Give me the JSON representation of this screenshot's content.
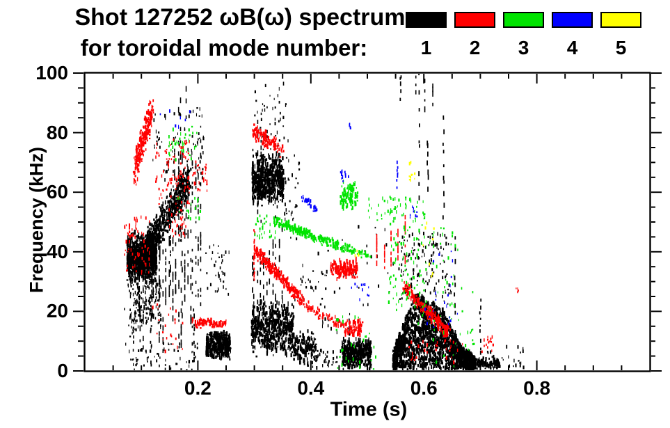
{
  "header": {
    "title_line1": "Shot 127252 ωB(ω) spectrum",
    "title_line2": "for toroidal mode number:"
  },
  "chart_data": {
    "type": "scatter",
    "title": "Shot 127252 ωB(ω) spectrum for toroidal mode number: 1 2 3 4 5",
    "xlabel": "Time (s)",
    "ylabel": "Frequency (kHz)",
    "xlim": [
      0.0,
      1.0
    ],
    "ylim": [
      0,
      100
    ],
    "x_major_ticks": [
      0.2,
      0.4,
      0.6,
      0.8
    ],
    "x_major_tick_labels": [
      "0.2",
      "0.4",
      "0.6",
      "0.8"
    ],
    "x_minor_tick_step": 0.05,
    "y_major_ticks": [
      0,
      20,
      40,
      60,
      80,
      100
    ],
    "y_major_tick_labels": [
      "0",
      "20",
      "40",
      "60",
      "80",
      "100"
    ],
    "y_minor_tick_step": 5,
    "grid": false,
    "legend": {
      "position": "top-right",
      "entries": [
        {
          "mode": 1,
          "label": "1",
          "color": "#000000"
        },
        {
          "mode": 2,
          "label": "2",
          "color": "#ff0000"
        },
        {
          "mode": 3,
          "label": "3",
          "color": "#00e400"
        },
        {
          "mode": 4,
          "label": "4",
          "color": "#0000ff"
        },
        {
          "mode": 5,
          "label": "5",
          "color": "#ffff00"
        }
      ]
    },
    "clusters_schema": "mode=toroidal mode number (color per legend); t=time range in s; f=frequency range in kHz; kinds: blob=dense patch, hump=dense mass under envelope env=[[t,fmax]...], trace=chirp from p1=[t,f] to p2=[t,f] with half-thickness w kHz, vlines=k dashed vertical striations with bottoms fb and tops ft, vline=single dashed vertical, speckle=sparse points",
    "clusters": [
      {
        "mode": 1,
        "kind": "blob",
        "t": [
          0.075,
          0.127
        ],
        "f": [
          29,
          46
        ],
        "n": 900
      },
      {
        "mode": 1,
        "kind": "speckle",
        "t": [
          0.08,
          0.135
        ],
        "f": [
          14,
          30
        ],
        "n": 140
      },
      {
        "mode": 1,
        "kind": "trace",
        "p1": [
          0.1,
          38
        ],
        "p2": [
          0.185,
          64
        ],
        "w": 7,
        "n": 650
      },
      {
        "mode": 1,
        "kind": "vlines",
        "t": [
          0.095,
          0.205
        ],
        "k": 26,
        "fb": [
          4,
          26
        ],
        "ft": [
          40,
          74
        ],
        "seg": 14
      },
      {
        "mode": 1,
        "kind": "vlines",
        "t": [
          0.157,
          0.178
        ],
        "k": 4,
        "fb": [
          38,
          48
        ],
        "ft": [
          88,
          100
        ],
        "seg": 10
      },
      {
        "mode": 1,
        "kind": "speckle",
        "t": [
          0.12,
          0.21
        ],
        "f": [
          62,
          88
        ],
        "n": 85
      },
      {
        "mode": 1,
        "kind": "speckle",
        "t": [
          0.085,
          0.2
        ],
        "f": [
          0,
          9
        ],
        "n": 55
      },
      {
        "mode": 1,
        "kind": "vline",
        "t": 0.117,
        "f": [
          0,
          22
        ],
        "n": 10
      },
      {
        "mode": 1,
        "kind": "vline",
        "t": 0.193,
        "f": [
          2,
          22
        ],
        "n": 8
      },
      {
        "mode": 1,
        "kind": "blob",
        "t": [
          0.215,
          0.258
        ],
        "f": [
          3,
          13
        ],
        "n": 380
      },
      {
        "mode": 1,
        "kind": "speckle",
        "t": [
          0.213,
          0.258
        ],
        "f": [
          24,
          42
        ],
        "n": 38
      },
      {
        "mode": 1,
        "kind": "blob",
        "t": [
          0.296,
          0.352
        ],
        "f": [
          54,
          73
        ],
        "n": 620
      },
      {
        "mode": 1,
        "kind": "vlines",
        "t": [
          0.296,
          0.312
        ],
        "k": 3,
        "fb": [
          46,
          52
        ],
        "ft": [
          76,
          82
        ],
        "seg": 8
      },
      {
        "mode": 1,
        "kind": "vlines",
        "t": [
          0.295,
          0.35
        ],
        "k": 11,
        "fb": [
          4,
          18
        ],
        "ft": [
          38,
          52
        ],
        "seg": 10
      },
      {
        "mode": 1,
        "kind": "blob",
        "t": [
          0.295,
          0.37
        ],
        "f": [
          4,
          23
        ],
        "n": 520
      },
      {
        "mode": 1,
        "kind": "blob",
        "t": [
          0.37,
          0.41
        ],
        "f": [
          1,
          13
        ],
        "n": 140
      },
      {
        "mode": 1,
        "kind": "speckle",
        "t": [
          0.3,
          0.36
        ],
        "f": [
          74,
          96
        ],
        "n": 45
      },
      {
        "mode": 1,
        "kind": "speckle",
        "t": [
          0.35,
          0.38
        ],
        "f": [
          50,
          72
        ],
        "n": 28
      },
      {
        "mode": 1,
        "kind": "speckle",
        "t": [
          0.38,
          0.43
        ],
        "f": [
          26,
          33
        ],
        "n": 18
      },
      {
        "mode": 1,
        "kind": "speckle",
        "t": [
          0.4,
          0.455
        ],
        "f": [
          0,
          7
        ],
        "n": 40
      },
      {
        "mode": 1,
        "kind": "speckle",
        "t": [
          0.42,
          0.455
        ],
        "f": [
          12,
          18
        ],
        "n": 12
      },
      {
        "mode": 1,
        "kind": "blob",
        "t": [
          0.455,
          0.507
        ],
        "f": [
          0,
          11
        ],
        "n": 380
      },
      {
        "mode": 1,
        "kind": "vline",
        "t": 0.468,
        "f": [
          9,
          16
        ],
        "n": 5
      },
      {
        "mode": 1,
        "kind": "hump",
        "env": [
          [
            0.545,
            6
          ],
          [
            0.565,
            16
          ],
          [
            0.585,
            25
          ],
          [
            0.63,
            21
          ],
          [
            0.665,
            8
          ],
          [
            0.69,
            4
          ]
        ],
        "n": 1700
      },
      {
        "mode": 1,
        "kind": "blob",
        "t": [
          0.69,
          0.735
        ],
        "f": [
          0,
          4
        ],
        "n": 110
      },
      {
        "mode": 1,
        "kind": "speckle",
        "t": [
          0.555,
          0.65
        ],
        "f": [
          22,
          46
        ],
        "n": 130
      },
      {
        "mode": 1,
        "kind": "vlines",
        "t": [
          0.585,
          0.615
        ],
        "k": 3,
        "fb": [
          84,
          88
        ],
        "ft": [
          96,
          99
        ],
        "seg": 5
      },
      {
        "mode": 1,
        "kind": "vline",
        "t": 0.559,
        "f": [
          90,
          100
        ],
        "n": 5
      },
      {
        "mode": 1,
        "kind": "vline",
        "t": 0.592,
        "f": [
          55,
          100
        ],
        "n": 9
      },
      {
        "mode": 1,
        "kind": "vline",
        "t": 0.607,
        "f": [
          60,
          78
        ],
        "n": 7
      },
      {
        "mode": 1,
        "kind": "vline",
        "t": 0.635,
        "f": [
          50,
          88
        ],
        "n": 11
      },
      {
        "mode": 1,
        "kind": "vline",
        "t": 0.655,
        "f": [
          12,
          45
        ],
        "n": 9
      },
      {
        "mode": 1,
        "kind": "vline",
        "t": 0.7,
        "f": [
          4,
          24
        ],
        "n": 9
      },
      {
        "mode": 1,
        "kind": "speckle",
        "t": [
          0.71,
          0.78
        ],
        "f": [
          0,
          8
        ],
        "n": 22
      },
      {
        "mode": 1,
        "kind": "speckle",
        "t": [
          0.07,
          0.095
        ],
        "f": [
          0,
          30
        ],
        "n": 35
      },
      {
        "mode": 1,
        "kind": "speckle",
        "t": [
          0.36,
          0.55
        ],
        "f": [
          15,
          48
        ],
        "n": 45
      },
      {
        "mode": 2,
        "kind": "trace",
        "p1": [
          0.088,
          67
        ],
        "p2": [
          0.12,
          88
        ],
        "w": 6,
        "n": 240
      },
      {
        "mode": 2,
        "kind": "speckle",
        "t": [
          0.07,
          0.115
        ],
        "f": [
          32,
          52
        ],
        "n": 65
      },
      {
        "mode": 2,
        "kind": "speckle",
        "t": [
          0.125,
          0.185
        ],
        "f": [
          55,
          78
        ],
        "n": 90
      },
      {
        "mode": 2,
        "kind": "speckle",
        "t": [
          0.145,
          0.18
        ],
        "f": [
          44,
          55
        ],
        "n": 30
      },
      {
        "mode": 2,
        "kind": "speckle",
        "t": [
          0.19,
          0.218
        ],
        "f": [
          60,
          70
        ],
        "n": 32
      },
      {
        "mode": 2,
        "kind": "trace",
        "p1": [
          0.192,
          15.5
        ],
        "p2": [
          0.248,
          15.5
        ],
        "w": 1.5,
        "n": 90
      },
      {
        "mode": 2,
        "kind": "speckle",
        "t": [
          0.12,
          0.175
        ],
        "f": [
          3,
          25
        ],
        "n": 22
      },
      {
        "mode": 2,
        "kind": "vline",
        "t": 0.3,
        "f": [
          30,
          47
        ],
        "n": 14
      },
      {
        "mode": 2,
        "kind": "trace",
        "p1": [
          0.302,
          40
        ],
        "p2": [
          0.385,
          23
        ],
        "w": 2.5,
        "n": 260
      },
      {
        "mode": 2,
        "kind": "trace",
        "p1": [
          0.385,
          22
        ],
        "p2": [
          0.47,
          13
        ],
        "w": 2,
        "n": 65
      },
      {
        "mode": 2,
        "kind": "trace",
        "p1": [
          0.297,
          80
        ],
        "p2": [
          0.35,
          74
        ],
        "w": 3,
        "n": 110
      },
      {
        "mode": 2,
        "kind": "blob",
        "t": [
          0.435,
          0.483
        ],
        "f": [
          30,
          37
        ],
        "n": 140
      },
      {
        "mode": 2,
        "kind": "blob",
        "t": [
          0.458,
          0.492
        ],
        "f": [
          10,
          17
        ],
        "n": 65
      },
      {
        "mode": 2,
        "kind": "vlines",
        "t": [
          0.518,
          0.568
        ],
        "k": 5,
        "fb": [
          33,
          36
        ],
        "ft": [
          42,
          46
        ],
        "seg": 8
      },
      {
        "mode": 2,
        "kind": "trace",
        "p1": [
          0.563,
          28
        ],
        "p2": [
          0.645,
          12
        ],
        "w": 2.5,
        "n": 240
      },
      {
        "mode": 2,
        "kind": "speckle",
        "t": [
          0.57,
          0.67
        ],
        "f": [
          2,
          10
        ],
        "n": 30
      },
      {
        "mode": 2,
        "kind": "speckle",
        "t": [
          0.7,
          0.725
        ],
        "f": [
          6,
          11
        ],
        "n": 14
      },
      {
        "mode": 2,
        "kind": "speckle",
        "t": [
          0.762,
          0.768
        ],
        "f": [
          26,
          28
        ],
        "n": 5
      },
      {
        "mode": 3,
        "kind": "trace",
        "p1": [
          0.335,
          50
        ],
        "p2": [
          0.455,
          41
        ],
        "w": 1.8,
        "n": 230
      },
      {
        "mode": 3,
        "kind": "trace",
        "p1": [
          0.455,
          41
        ],
        "p2": [
          0.505,
          38
        ],
        "w": 1.5,
        "n": 45
      },
      {
        "mode": 3,
        "kind": "blob",
        "t": [
          0.452,
          0.483
        ],
        "f": [
          52,
          64
        ],
        "n": 90
      },
      {
        "mode": 3,
        "kind": "speckle",
        "t": [
          0.5,
          0.555
        ],
        "f": [
          50,
          58
        ],
        "n": 22
      },
      {
        "mode": 3,
        "kind": "speckle",
        "t": [
          0.538,
          0.605
        ],
        "f": [
          20,
          58
        ],
        "n": 125
      },
      {
        "mode": 3,
        "kind": "speckle",
        "t": [
          0.148,
          0.2
        ],
        "f": [
          70,
          82
        ],
        "n": 36
      },
      {
        "mode": 3,
        "kind": "speckle",
        "t": [
          0.163,
          0.205
        ],
        "f": [
          50,
          58
        ],
        "n": 18
      },
      {
        "mode": 3,
        "kind": "speckle",
        "t": [
          0.3,
          0.345
        ],
        "f": [
          44,
          52
        ],
        "n": 32
      },
      {
        "mode": 3,
        "kind": "speckle",
        "t": [
          0.445,
          0.52
        ],
        "f": [
          0,
          18
        ],
        "n": 28
      },
      {
        "mode": 3,
        "kind": "speckle",
        "t": [
          0.59,
          0.69
        ],
        "f": [
          0,
          28
        ],
        "n": 40
      },
      {
        "mode": 3,
        "kind": "speckle",
        "t": [
          0.61,
          0.66
        ],
        "f": [
          28,
          48
        ],
        "n": 22
      },
      {
        "mode": 4,
        "kind": "trace",
        "p1": [
          0.385,
          58
        ],
        "p2": [
          0.412,
          53
        ],
        "w": 1.5,
        "n": 26
      },
      {
        "mode": 4,
        "kind": "speckle",
        "t": [
          0.452,
          0.468
        ],
        "f": [
          63,
          67
        ],
        "n": 12
      },
      {
        "mode": 4,
        "kind": "speckle",
        "t": [
          0.47,
          0.505
        ],
        "f": [
          22,
          30
        ],
        "n": 12
      },
      {
        "mode": 4,
        "kind": "vline",
        "t": 0.553,
        "f": [
          61,
          70
        ],
        "n": 7
      },
      {
        "mode": 4,
        "kind": "speckle",
        "t": [
          0.575,
          0.59
        ],
        "f": [
          51,
          56
        ],
        "n": 8
      },
      {
        "mode": 4,
        "kind": "speckle",
        "t": [
          0.6,
          0.66
        ],
        "f": [
          13,
          40
        ],
        "n": 20
      },
      {
        "mode": 4,
        "kind": "speckle",
        "t": [
          0.13,
          0.19
        ],
        "f": [
          80,
          88
        ],
        "n": 7
      },
      {
        "mode": 4,
        "kind": "speckle",
        "t": [
          0.466,
          0.472
        ],
        "f": [
          81,
          83
        ],
        "n": 4
      },
      {
        "mode": 5,
        "kind": "speckle",
        "t": [
          0.572,
          0.588
        ],
        "f": [
          63,
          70
        ],
        "n": 10
      },
      {
        "mode": 5,
        "kind": "speckle",
        "t": [
          0.478,
          0.486
        ],
        "f": [
          37,
          40
        ],
        "n": 4
      },
      {
        "mode": 5,
        "kind": "speckle",
        "t": [
          0.585,
          0.63
        ],
        "f": [
          28,
          50
        ],
        "n": 8
      }
    ]
  }
}
